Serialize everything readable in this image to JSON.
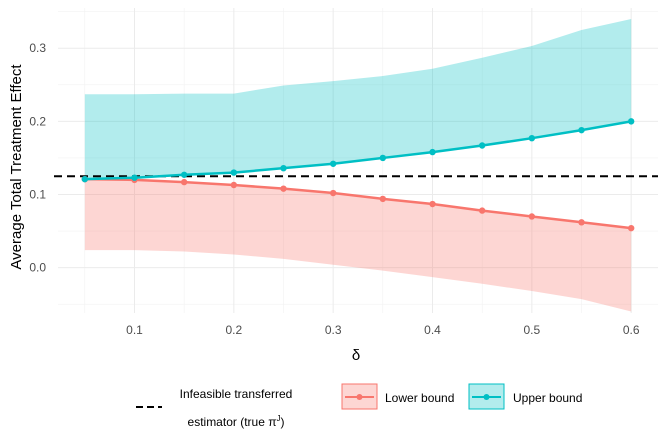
{
  "chart_data": {
    "type": "line",
    "xlabel": "δ",
    "ylabel": "Average Total Treatment Effect",
    "xlim": [
      0.023,
      0.627
    ],
    "ylim": [
      -0.062,
      0.355
    ],
    "x_ticks": [
      0.1,
      0.2,
      0.3,
      0.4,
      0.5,
      0.6
    ],
    "x_tick_labels": [
      "0.1",
      "0.2",
      "0.3",
      "0.4",
      "0.5",
      "0.6"
    ],
    "y_ticks": [
      0.0,
      0.1,
      0.2,
      0.3
    ],
    "y_tick_labels": [
      "0.0",
      "0.1",
      "0.2",
      "0.3"
    ],
    "grid": true,
    "x": [
      0.05,
      0.1,
      0.15,
      0.2,
      0.25,
      0.3,
      0.35,
      0.4,
      0.45,
      0.5,
      0.55,
      0.6
    ],
    "series": [
      {
        "name": "Lower bound",
        "color": "#F8766D",
        "fill_color": "#F8766D",
        "values": [
          0.121,
          0.12,
          0.117,
          0.113,
          0.108,
          0.102,
          0.094,
          0.087,
          0.078,
          0.07,
          0.062,
          0.054
        ],
        "band_lower": [
          0.024,
          0.024,
          0.022,
          0.018,
          0.012,
          0.004,
          -0.004,
          -0.013,
          -0.022,
          -0.032,
          -0.043,
          -0.06
        ],
        "band_upper": [
          0.121,
          0.12,
          0.117,
          0.113,
          0.108,
          0.102,
          0.094,
          0.087,
          0.078,
          0.07,
          0.062,
          0.054
        ]
      },
      {
        "name": "Upper bound",
        "color": "#00BFC4",
        "fill_color": "#00BFC4",
        "values": [
          0.121,
          0.123,
          0.127,
          0.13,
          0.136,
          0.142,
          0.15,
          0.158,
          0.167,
          0.177,
          0.188,
          0.2
        ],
        "band_lower": [
          0.121,
          0.123,
          0.127,
          0.13,
          0.136,
          0.142,
          0.15,
          0.158,
          0.167,
          0.177,
          0.188,
          0.2
        ],
        "band_upper": [
          0.237,
          0.237,
          0.238,
          0.238,
          0.249,
          0.255,
          0.262,
          0.272,
          0.287,
          0.303,
          0.325,
          0.34
        ]
      }
    ],
    "reference_line": {
      "y": 0.125,
      "style": "dashed",
      "color": "#000000",
      "label_line1": "Infeasible transferred",
      "label_line2": "estimator (true π",
      "label_sup": "J",
      "label_end": ")"
    },
    "legend": {
      "position": "bottom",
      "entries": [
        "Lower bound",
        "Upper bound"
      ]
    }
  }
}
